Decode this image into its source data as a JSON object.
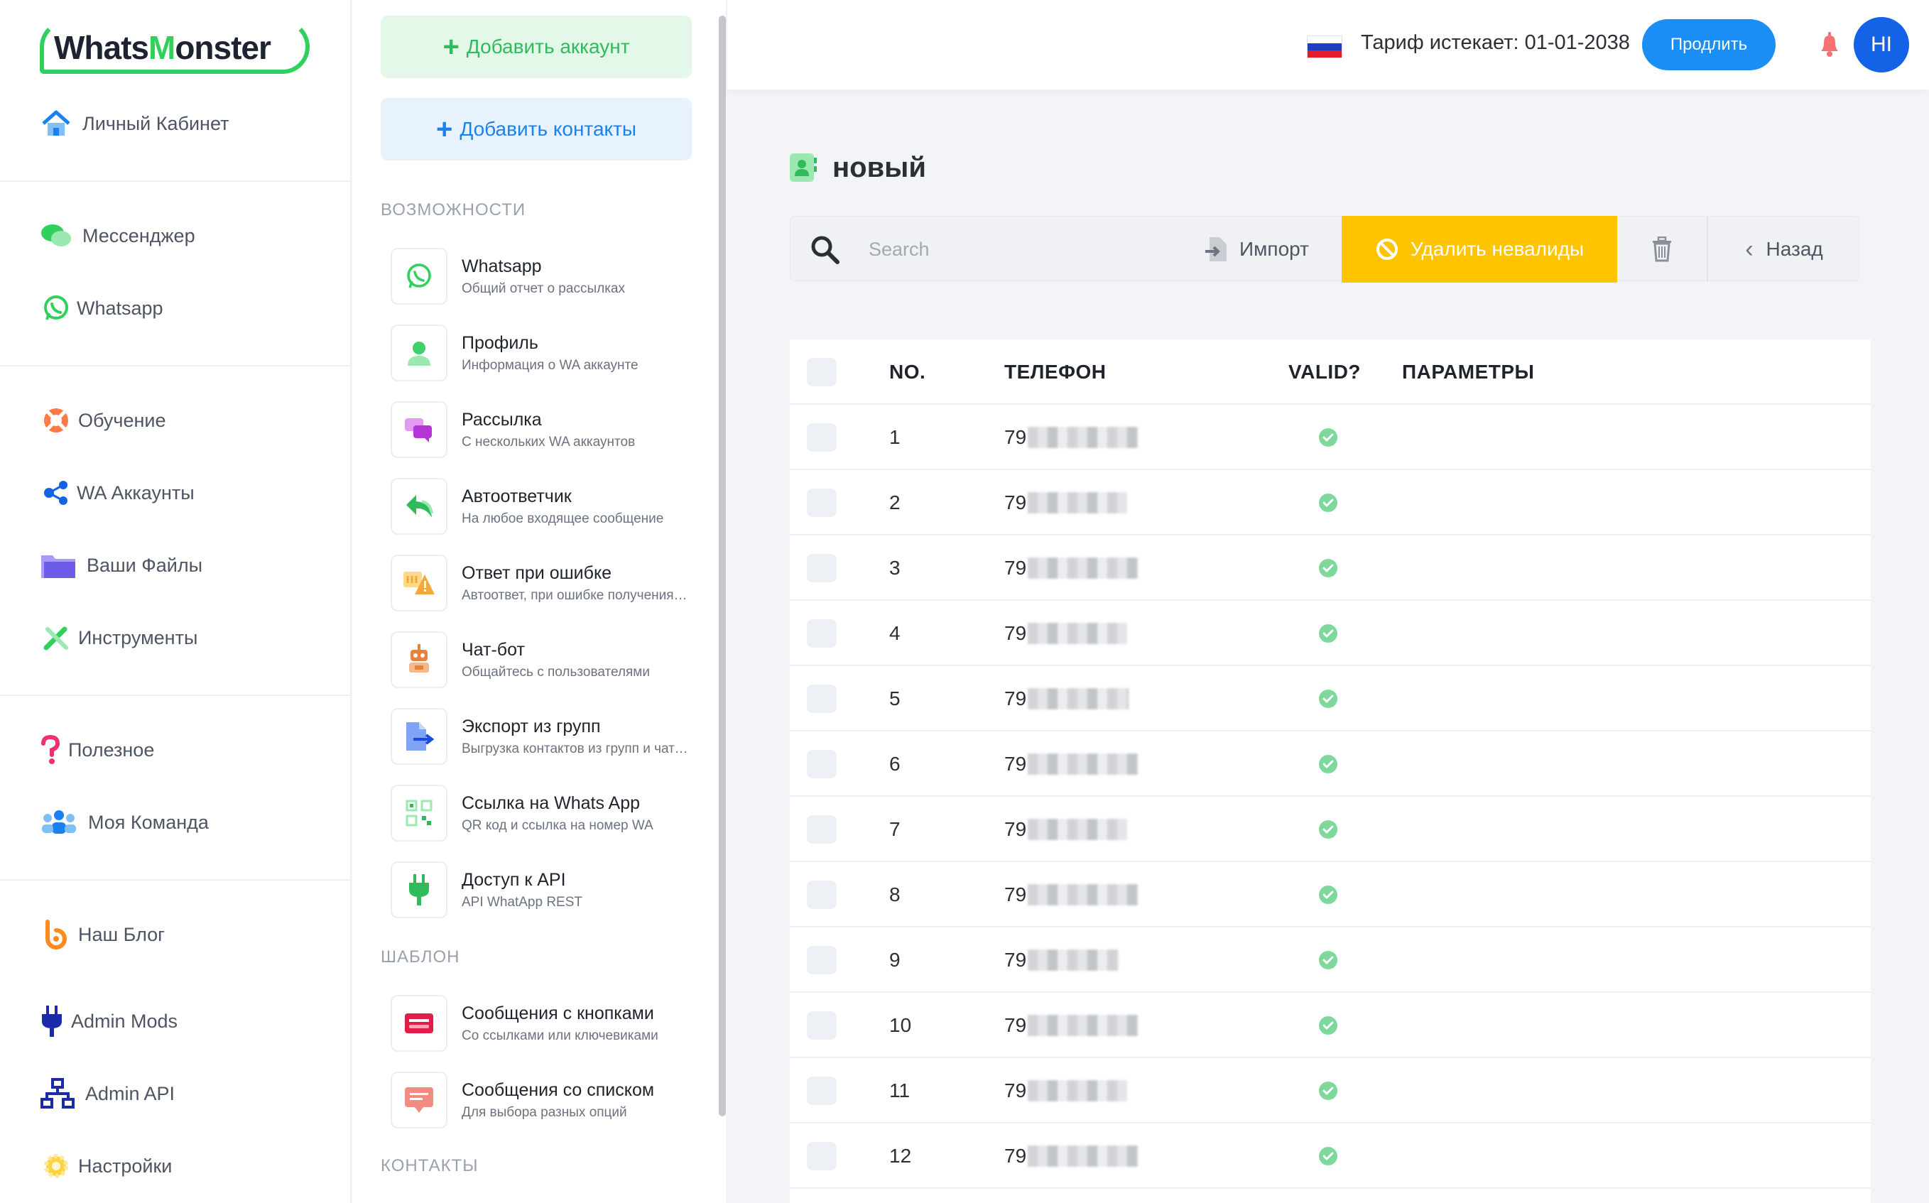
{
  "brand": {
    "logo_pre": "Whats",
    "logo_accent": "M",
    "logo_post": "onster"
  },
  "sidebar": {
    "items": [
      {
        "label": "Личный Кабинет",
        "icon": "home-icon"
      },
      {
        "label": "Мессенджер",
        "icon": "chat-bubbles-icon"
      },
      {
        "label": "Whatsapp",
        "icon": "whatsapp-icon"
      },
      {
        "label": "Обучение",
        "icon": "lifebuoy-icon"
      },
      {
        "label": "WA Аккаунты",
        "icon": "share-nodes-icon"
      },
      {
        "label": "Ваши Файлы",
        "icon": "folder-icon"
      },
      {
        "label": "Инструменты",
        "icon": "tools-icon"
      },
      {
        "label": "Полезное",
        "icon": "question-icon"
      },
      {
        "label": "Моя Команда",
        "icon": "team-icon"
      },
      {
        "label": "Наш Блог",
        "icon": "blog-icon"
      },
      {
        "label": "Admin Mods",
        "icon": "plug-icon"
      },
      {
        "label": "Admin API",
        "icon": "network-icon"
      },
      {
        "label": "Настройки",
        "icon": "gear-icon"
      }
    ]
  },
  "panel": {
    "add_account": "Добавить аккаунт",
    "add_contacts": "Добавить контакты",
    "section_features": "Возможности",
    "section_templates": "Шаблон",
    "section_contacts": "Контакты",
    "features": [
      {
        "title": "Whatsapp",
        "subtitle": "Общий отчет о рассылках",
        "icon": "whatsapp-icon"
      },
      {
        "title": "Профиль",
        "subtitle": "Информация о WA аккаунте",
        "icon": "user-icon"
      },
      {
        "title": "Рассылка",
        "subtitle": "С нескольких WA аккаунтов",
        "icon": "messages-icon"
      },
      {
        "title": "Автоответчик",
        "subtitle": "На любое входящее сообщение",
        "icon": "reply-icon"
      },
      {
        "title": "Ответ при ошибке",
        "subtitle": "Автоответ, при ошибке получения сообщения",
        "icon": "warning-icon"
      },
      {
        "title": "Чат-бот",
        "subtitle": "Общайтесь с пользователями",
        "icon": "robot-icon"
      },
      {
        "title": "Экспорт из групп",
        "subtitle": "Выгрузка контактов из групп и чатов",
        "icon": "export-icon"
      },
      {
        "title": "Ссылка на Whats App",
        "subtitle": "QR код и ссылка на номер WA",
        "icon": "qr-icon"
      },
      {
        "title": "Доступ к API",
        "subtitle": "API WhatApp REST",
        "icon": "plug-icon"
      }
    ],
    "templates": [
      {
        "title": "Сообщения с кнопками",
        "subtitle": "Со ссылками или ключевиками",
        "icon": "button-template-icon"
      },
      {
        "title": "Сообщения со списком",
        "subtitle": "Для выбора разных опций",
        "icon": "list-template-icon"
      }
    ]
  },
  "header": {
    "tariff": "Тариф истекает: 01-01-2038",
    "renew": "Продлить",
    "avatar": "HI"
  },
  "page": {
    "title": "новый",
    "search_placeholder": "Search",
    "import": "Импорт",
    "remove_invalid": "Удалить невалиды",
    "back": "Назад"
  },
  "table": {
    "columns": {
      "no": "NO.",
      "phone": "ТЕЛЕФОН",
      "valid": "VALID?",
      "params": "ПАРАМЕТРЫ"
    },
    "rows": [
      {
        "no": "1",
        "phone": "79",
        "valid": true
      },
      {
        "no": "2",
        "phone": "79",
        "valid": true
      },
      {
        "no": "3",
        "phone": "79",
        "valid": true
      },
      {
        "no": "4",
        "phone": "79",
        "valid": true
      },
      {
        "no": "5",
        "phone": "79",
        "valid": true
      },
      {
        "no": "6",
        "phone": "79",
        "valid": true
      },
      {
        "no": "7",
        "phone": "79",
        "valid": true
      },
      {
        "no": "8",
        "phone": "79",
        "valid": true
      },
      {
        "no": "9",
        "phone": "79",
        "valid": true
      },
      {
        "no": "10",
        "phone": "79",
        "valid": true
      },
      {
        "no": "11",
        "phone": "79",
        "valid": true
      },
      {
        "no": "12",
        "phone": "79",
        "valid": true
      }
    ]
  },
  "colors": {
    "brand_green": "#2fd15c",
    "accent_blue": "#1a8ef5",
    "warning_yellow": "#ffc400",
    "valid_green": "#7fd89b"
  }
}
